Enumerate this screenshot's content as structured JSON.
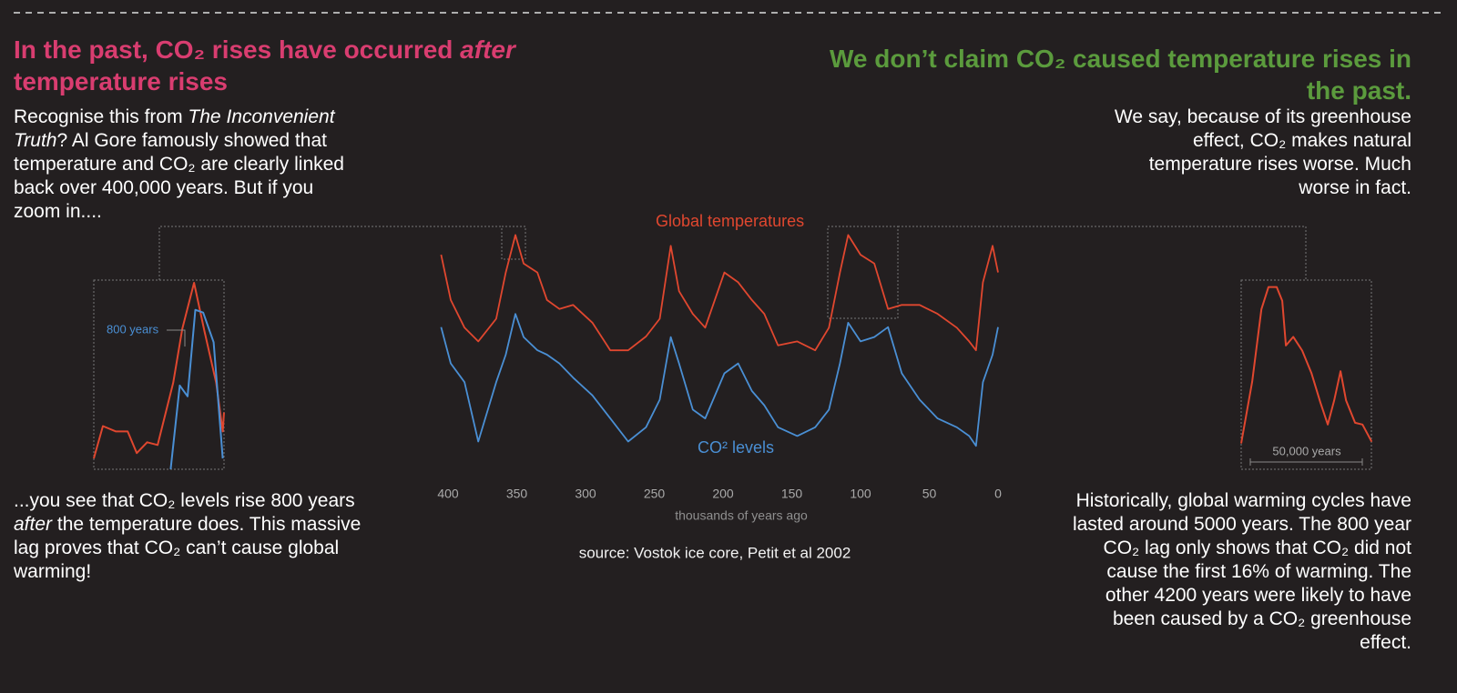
{
  "texts": {
    "left_title": [
      "In the past, CO₂ rises have occurred ",
      "after",
      " temperature rises"
    ],
    "left_body": [
      "Recognise this from ",
      "The Inconvenient Truth",
      "? Al Gore famously showed that temperature and CO₂ are clearly linked back over 400,000 years. But if you zoom in...."
    ],
    "left_bottom": [
      "...you see that CO₂ levels rise 800 years ",
      "after",
      " the temperature does. This massive lag proves that CO₂ can’t cause global warming!"
    ],
    "right_title": "We don’t claim CO₂ caused temperature rises in the past.",
    "right_body": "We say, because of its greenhouse effect, CO₂ makes natural temperature rises worse. Much worse in fact.",
    "right_bottom": "Historically, global warming cycles have lasted around 5000 years. The 800 year CO₂ lag only shows that CO₂ did not cause the first 16% of warming. The other 4200 years were likely to have been caused by a CO₂ greenhouse effect."
  },
  "chart_data": [
    {
      "type": "line",
      "xlabel": "thousands of years ago",
      "source": "source: Vostok ice core, Petit et al 2002",
      "x": [
        405,
        398,
        388,
        378,
        365,
        358,
        351,
        345,
        335,
        328,
        319,
        309,
        295,
        282,
        269,
        256,
        246,
        238,
        232,
        222,
        213,
        199,
        189,
        179,
        170,
        160,
        146,
        133,
        123,
        115,
        109,
        100,
        90,
        80,
        70,
        57,
        44,
        30,
        21,
        16,
        11,
        4,
        0
      ],
      "xlim": [
        400,
        0
      ],
      "xticks": [
        400,
        350,
        300,
        250,
        200,
        150,
        100,
        50,
        0
      ],
      "ylim": [
        -20,
        4
      ],
      "y2lim": [
        170,
        385
      ],
      "series": [
        {
          "name": "Global temperatures",
          "color": "#e0472f",
          "values": [
            0.3,
            -4.3,
            -7.1,
            -8.5,
            -6.2,
            -1.5,
            2.3,
            -0.6,
            -1.5,
            -4.3,
            -5.2,
            -4.8,
            -6.6,
            -9.4,
            -9.4,
            -8.0,
            -6.2,
            1.2,
            -3.4,
            -5.7,
            -7.1,
            -1.5,
            -2.5,
            -4.3,
            -5.7,
            -8.9,
            -8.5,
            -9.4,
            -7.1,
            -1.5,
            2.3,
            0.3,
            -0.6,
            -5.2,
            -4.8,
            -4.8,
            -5.7,
            -7.1,
            -8.5,
            -9.4,
            -2.5,
            1.2,
            -1.5
          ]
        },
        {
          "name": "CO² levels",
          "color": "#4a8fd4",
          "axis": "y2",
          "values": [
            286,
            253,
            236,
            182,
            236,
            261,
            298,
            277,
            265,
            261,
            253,
            240,
            224,
            203,
            182,
            195,
            220,
            277,
            253,
            211,
            203,
            244,
            253,
            228,
            215,
            195,
            187,
            195,
            211,
            253,
            290,
            273,
            277,
            286,
            244,
            220,
            203,
            195,
            187,
            178,
            236,
            261,
            286
          ]
        }
      ]
    },
    {
      "type": "line",
      "annotation": "800 years",
      "xlim": [
        361,
        351
      ],
      "ylim": [
        -4,
        3
      ],
      "y2lim": [
        230,
        300
      ],
      "series": [
        {
          "color": "#e0472f",
          "x": [
            361.0,
            360.3,
            359.3,
            358.4,
            357.7,
            356.9,
            356.1,
            354.9,
            354.2,
            353.3,
            352.5,
            351.6,
            351.1,
            351.0
          ],
          "values": [
            -3.6,
            -2.4,
            -2.6,
            -2.6,
            -3.4,
            -3.0,
            -3.1,
            -0.8,
            1.2,
            2.9,
            1.1,
            -0.8,
            -2.6,
            -1.9
          ]
        },
        {
          "color": "#4a8fd4",
          "axis": "y2",
          "x": [
            355.1,
            354.4,
            353.8,
            353.2,
            352.6,
            351.8,
            351.1
          ],
          "values": [
            230,
            261,
            257,
            289,
            288,
            277,
            234
          ]
        }
      ]
    },
    {
      "type": "line",
      "annotation": "50,000 years",
      "xlim": [
        124,
        73
      ],
      "ylim": [
        -8,
        3
      ],
      "series": [
        {
          "color": "#e0472f",
          "x": [
            124,
            119.7,
            116.1,
            113.3,
            110.1,
            107.9,
            106.5,
            103.6,
            100.1,
            96.5,
            93.0,
            90.1,
            87.6,
            85.1,
            82.9,
            79.4,
            76.5,
            72.9
          ],
          "values": [
            -6.5,
            -2.9,
            1.3,
            2.6,
            2.6,
            1.8,
            -0.8,
            -0.3,
            -1.1,
            -2.4,
            -4.1,
            -5.4,
            -4.0,
            -2.3,
            -4.0,
            -5.3,
            -5.4,
            -6.4
          ]
        }
      ]
    }
  ]
}
